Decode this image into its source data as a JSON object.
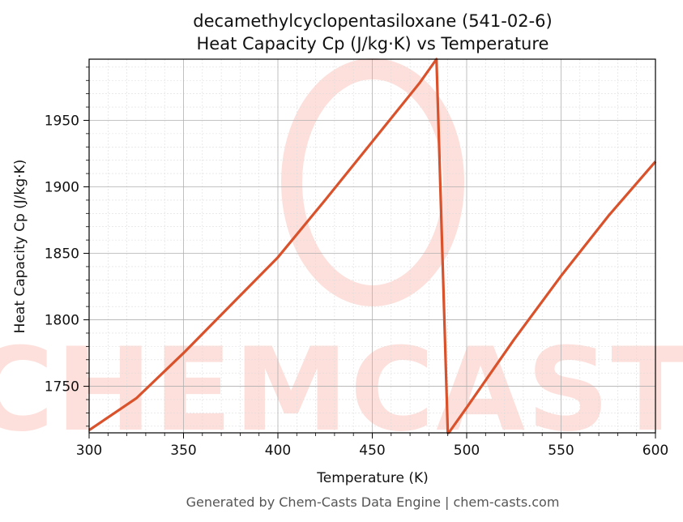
{
  "chart_data": {
    "type": "line",
    "title": "decamethylcyclopentasiloxane (541-02-6)",
    "subtitle": "Heat Capacity Cp (J/kg·K) vs Temperature",
    "xlabel": "Temperature (K)",
    "ylabel": "Heat Capacity Cp (J/kg·K)",
    "xlim": [
      300,
      600
    ],
    "ylim": [
      1715,
      1996
    ],
    "xticks": [
      300,
      350,
      400,
      450,
      500,
      550,
      600
    ],
    "yticks": [
      1750,
      1800,
      1850,
      1900,
      1950
    ],
    "grid": true,
    "minor_grid": true,
    "series": [
      {
        "color": "#d9522b",
        "x": [
          300,
          325,
          350,
          375,
          400,
          425,
          450,
          475,
          484,
          490,
          490.5,
          500,
          525,
          550,
          575,
          600
        ],
        "y": [
          1717,
          1741,
          1775,
          1811,
          1847,
          1890,
          1934,
          1978,
          1996,
          1715,
          1715,
          1734,
          1785,
          1833,
          1878,
          1919
        ]
      }
    ]
  },
  "watermark": {
    "text": "CHEMCASTS",
    "color": "#fde0db"
  },
  "footer": "Generated by Chem-Casts Data Engine | chem-casts.com"
}
